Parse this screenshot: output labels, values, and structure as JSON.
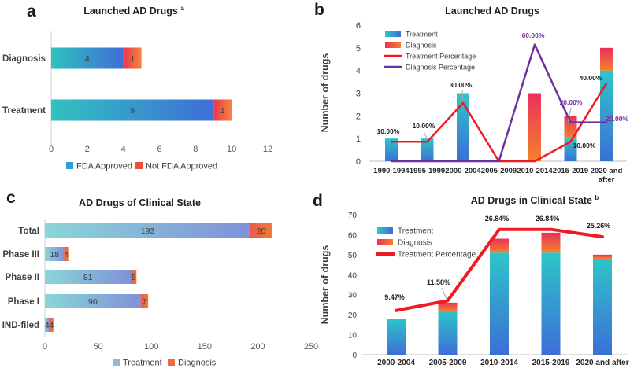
{
  "chart_data": [
    {
      "panel_letter": "a",
      "type": "bar",
      "orientation": "horizontal",
      "stacked": true,
      "title": "Launched AD Drugs",
      "title_superscript": "a",
      "categories": [
        "Diagnosis",
        "Treatment"
      ],
      "series": [
        {
          "name": "FDA Approved",
          "values": [
            4,
            9
          ],
          "gradient": [
            "#2fc2bf",
            "#3f6ed8"
          ],
          "legend_color": "#2da0d8"
        },
        {
          "name": "Not FDA Approved",
          "values": [
            1,
            1
          ],
          "gradient": [
            "#e8374f",
            "#f6863a"
          ],
          "legend_color": "#e94f3d"
        }
      ],
      "xlim": [
        0,
        12
      ],
      "xticks": [
        "0",
        "2",
        "4",
        "6",
        "8",
        "10",
        "12"
      ],
      "legend": [
        "FDA Approved",
        "Not FDA Approved"
      ],
      "legend_position": "bottom"
    },
    {
      "panel_letter": "b",
      "type": "bar-line-combo",
      "title": "Launched AD Drugs",
      "ylabel": "Number of drugs",
      "ylim": [
        0,
        6
      ],
      "yticks": [
        "0",
        "1",
        "2",
        "3",
        "4",
        "5",
        "6"
      ],
      "secondary_ylim": [
        0,
        70
      ],
      "categories": [
        "1990-1994",
        "1995-1999",
        "2000-2004",
        "2005-2009",
        "2010-2014",
        "2015-2019",
        "2020 and after"
      ],
      "bar_series": [
        {
          "name": "Treatment",
          "values": [
            1,
            1,
            3,
            0,
            0,
            1,
            4
          ],
          "gradient": [
            "#2ec5c9",
            "#3c6fd6"
          ]
        },
        {
          "name": "Diagnosis",
          "values": [
            0,
            0,
            0,
            0,
            3,
            1,
            1
          ],
          "gradient": [
            "#e8315b",
            "#f5822d"
          ]
        }
      ],
      "line_series": [
        {
          "name": "Treatment Percentage",
          "values_pct": [
            10,
            10,
            30,
            0,
            0,
            10,
            40
          ],
          "color": "#ed1c24"
        },
        {
          "name": "Diagnosis Percentage",
          "values_pct": [
            0,
            0,
            0,
            0,
            60,
            20,
            20
          ],
          "color": "#7030a0"
        }
      ],
      "annotations": [
        {
          "text": "10.00%",
          "color": "#1a1a1a"
        },
        {
          "text": "10.00%",
          "color": "#1a1a1a"
        },
        {
          "text": "30.00%",
          "color": "#1a1a1a"
        },
        {
          "text": "60.00%",
          "color": "#7030a0"
        },
        {
          "text": "20.00%",
          "color": "#7030a0"
        },
        {
          "text": "10.00%",
          "color": "#1a1a1a"
        },
        {
          "text": "40.00%",
          "color": "#1a1a1a"
        },
        {
          "text": "20.00%",
          "color": "#7030a0"
        }
      ],
      "legend_position": "top-left-inside"
    },
    {
      "panel_letter": "c",
      "type": "bar",
      "orientation": "horizontal",
      "stacked": true,
      "title": "AD Drugs of Clinical State",
      "categories": [
        "Total",
        "Phase III",
        "Phase II",
        "Phase I",
        "IND-filed"
      ],
      "series": [
        {
          "name": "Treatment",
          "values": [
            193,
            18,
            81,
            90,
            4
          ],
          "gradient": [
            "#8ad6d8",
            "#8091d8"
          ],
          "legend_color": "#8db9dc"
        },
        {
          "name": "Diagnosis",
          "values": [
            20,
            4,
            5,
            7,
            4
          ],
          "gradient": [
            "#ea5b4d",
            "#ef7a38"
          ],
          "legend_color": "#ed6a45"
        }
      ],
      "xlim": [
        0,
        250
      ],
      "xticks": [
        "0",
        "50",
        "100",
        "150",
        "200",
        "250"
      ],
      "legend": [
        "Treatment",
        "Diagnosis"
      ],
      "legend_position": "bottom"
    },
    {
      "panel_letter": "d",
      "type": "bar-line-combo",
      "title": "AD Drugs in Clinical State",
      "title_superscript": "b",
      "ylabel": "Number of drugs",
      "ylim": [
        0,
        70
      ],
      "yticks": [
        "0",
        "10",
        "20",
        "30",
        "40",
        "50",
        "60",
        "70"
      ],
      "secondary_ylim": [
        0,
        30
      ],
      "categories": [
        "2000-2004",
        "2005-2009",
        "2010-2014",
        "2015-2019",
        "2020 and after"
      ],
      "bar_series": [
        {
          "name": "Treatment",
          "values": [
            18,
            22,
            51,
            51,
            48
          ],
          "gradient": [
            "#2ec5c9",
            "#3c6fd6"
          ]
        },
        {
          "name": "Diagnosis",
          "values": [
            0,
            4,
            7,
            10,
            2
          ],
          "gradient": [
            "#e8315b",
            "#f5822d"
          ]
        }
      ],
      "line_series": [
        {
          "name": "Treatment Percentage",
          "values_pct": [
            9.47,
            11.58,
            26.84,
            26.84,
            25.26
          ],
          "color": "#ed1c24"
        }
      ],
      "annotations": [
        {
          "text": "9.47%",
          "color": "#1a1a1a"
        },
        {
          "text": "11.58%",
          "color": "#1a1a1a"
        },
        {
          "text": "26.84%",
          "color": "#1a1a1a"
        },
        {
          "text": "26.84%",
          "color": "#1a1a1a"
        },
        {
          "text": "25.26%",
          "color": "#1a1a1a"
        }
      ],
      "legend_position": "top-left-inside"
    }
  ]
}
